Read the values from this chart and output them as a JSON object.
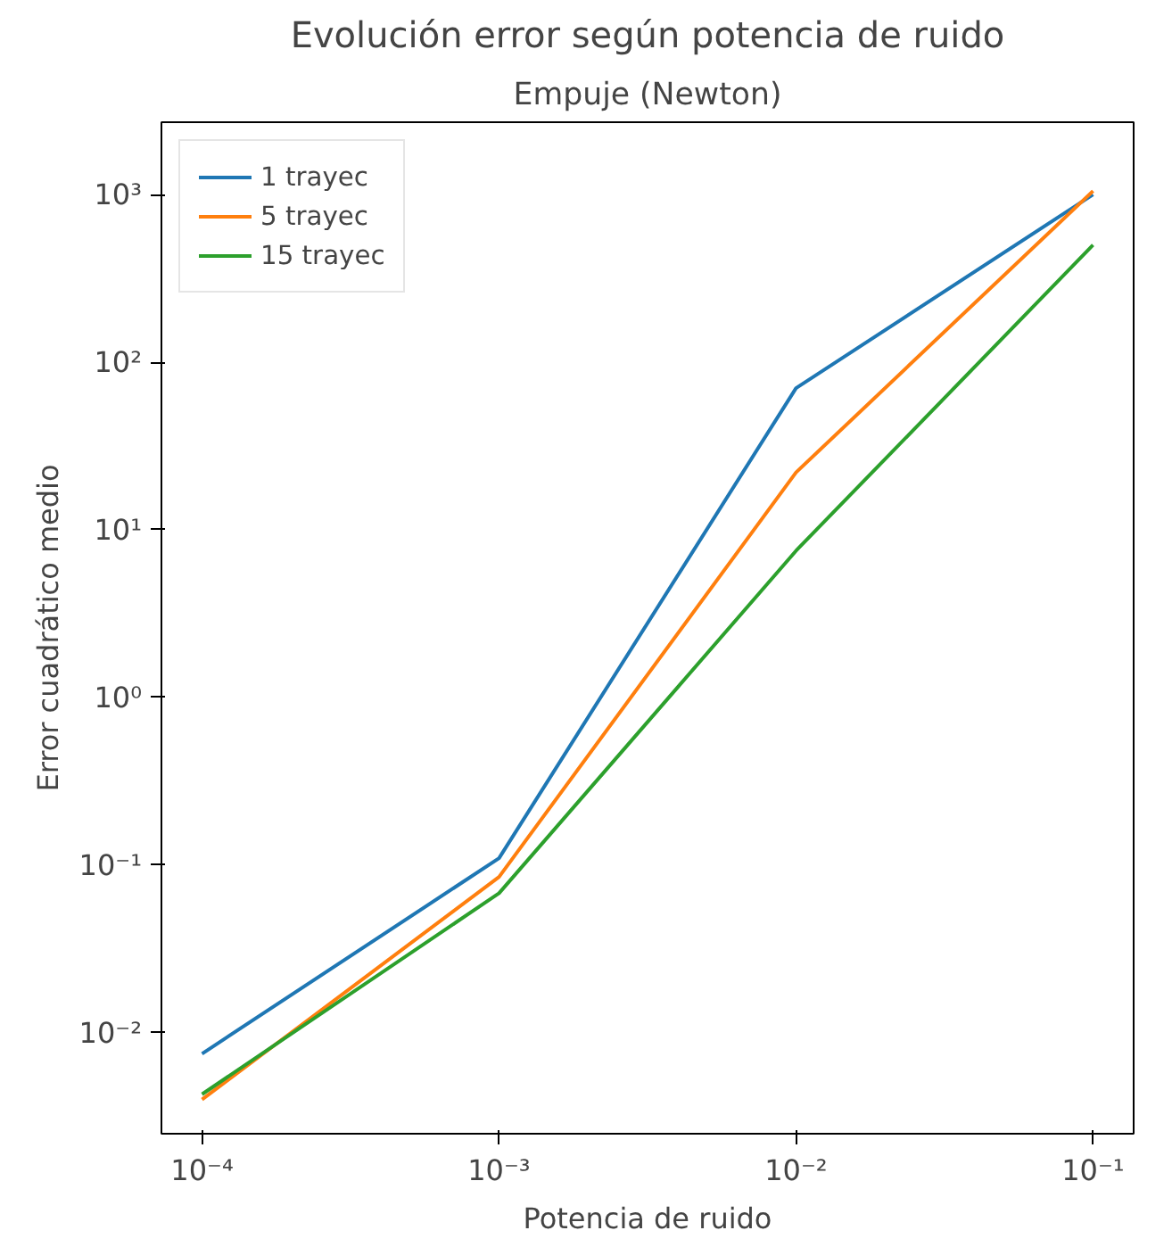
{
  "chart_data": {
    "type": "line",
    "title": "Evolución error según potencia de ruido",
    "subtitle": "Empuje (Newton)",
    "xlabel": "Potencia de ruido",
    "ylabel": "Error cuadrático medio",
    "x": [
      0.0001,
      0.001,
      0.01,
      0.1
    ],
    "series": [
      {
        "name": "1 trayec",
        "color": "#1f77b4",
        "values": [
          0.0075,
          0.11,
          70,
          1000
        ]
      },
      {
        "name": "5 trayec",
        "color": "#ff7f0e",
        "values": [
          0.004,
          0.085,
          22,
          1050
        ]
      },
      {
        "name": "15 trayec",
        "color": "#2ca02c",
        "values": [
          0.0043,
          0.068,
          7.5,
          500
        ]
      }
    ],
    "log": "xy",
    "xlim": [
      7.3e-05,
      0.137
    ],
    "ylim": [
      0.0025,
      2700
    ],
    "xticks": [
      {
        "value": 0.0001,
        "label": "10⁻⁴"
      },
      {
        "value": 0.001,
        "label": "10⁻³"
      },
      {
        "value": 0.01,
        "label": "10⁻²"
      },
      {
        "value": 0.1,
        "label": "10⁻¹"
      }
    ],
    "yticks": [
      {
        "value": 0.01,
        "label": "10⁻²"
      },
      {
        "value": 0.1,
        "label": "10⁻¹"
      },
      {
        "value": 1,
        "label": "10⁰"
      },
      {
        "value": 10,
        "label": "10¹"
      },
      {
        "value": 100,
        "label": "10²"
      },
      {
        "value": 1000,
        "label": "10³"
      }
    ],
    "grid": false,
    "legend": "top left",
    "marker": "none",
    "line_style": "solid"
  }
}
